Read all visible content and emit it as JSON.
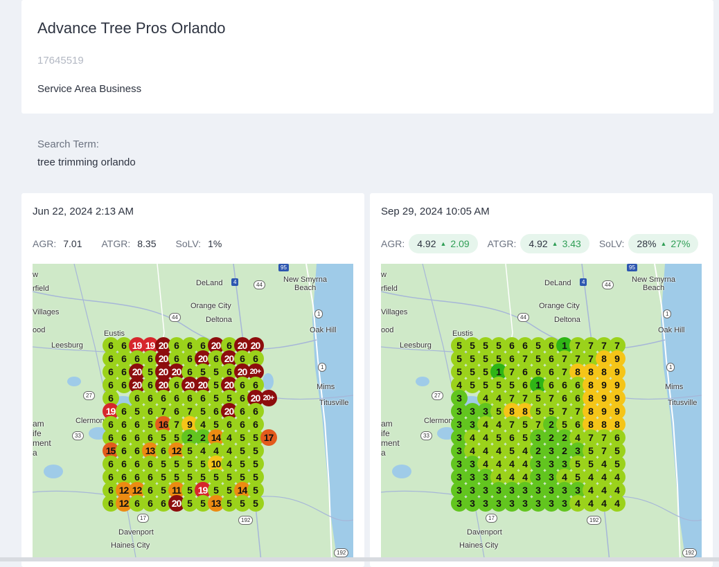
{
  "business": {
    "name": "Advance Tree Pros Orlando",
    "id": "17645519",
    "type": "Service Area Business"
  },
  "search": {
    "label": "Search Term:",
    "term": "tree trimming orlando"
  },
  "colors": {
    "rank_1": "#2fb516",
    "rank_2_3": "#62c51f",
    "rank_4_7": "#9bd21b",
    "rank_8_10": "#f5c518",
    "rank_11_14": "#ec8b12",
    "rank_15_17": "#e35b1c",
    "rank_18_19": "#d6262c",
    "rank_20": "#8d0d0d"
  },
  "scans": [
    {
      "date": "Jun 22, 2024 2:13 AM",
      "metrics": {
        "agr_label": "AGR:",
        "agr": "7.01",
        "atgr_label": "ATGR:",
        "atgr": "8.35",
        "solv_label": "SoLV:",
        "solv": "1%"
      },
      "grid": [
        [
          "6",
          "6",
          "19",
          "19",
          "20",
          "6",
          "6",
          "6",
          "20",
          "6",
          "20",
          "20",
          ""
        ],
        [
          "6",
          "6",
          "6",
          "6",
          "20",
          "6",
          "6",
          "20",
          "6",
          "20",
          "6",
          "6",
          ""
        ],
        [
          "6",
          "6",
          "20",
          "5",
          "20",
          "20",
          "6",
          "5",
          "5",
          "6",
          "20",
          "20+",
          ""
        ],
        [
          "6",
          "6",
          "20",
          "6",
          "20",
          "6",
          "20",
          "20",
          "5",
          "20",
          "6",
          "6",
          ""
        ],
        [
          "6",
          "",
          "6",
          "6",
          "6",
          "6",
          "6",
          "6",
          "5",
          "5",
          "6",
          "20",
          "20+"
        ],
        [
          "19",
          "6",
          "5",
          "6",
          "7",
          "6",
          "7",
          "5",
          "6",
          "20",
          "6",
          "6",
          ""
        ],
        [
          "6",
          "6",
          "6",
          "5",
          "16",
          "7",
          "9",
          "4",
          "5",
          "6",
          "6",
          "6",
          ""
        ],
        [
          "6",
          "6",
          "6",
          "6",
          "5",
          "5",
          "2",
          "2",
          "14",
          "4",
          "5",
          "5",
          "17"
        ],
        [
          "15",
          "6",
          "6",
          "13",
          "6",
          "12",
          "5",
          "4",
          "4",
          "4",
          "5",
          "5",
          ""
        ],
        [
          "6",
          "6",
          "6",
          "6",
          "5",
          "5",
          "5",
          "5",
          "10",
          "4",
          "5",
          "5",
          ""
        ],
        [
          "6",
          "6",
          "6",
          "6",
          "5",
          "5",
          "5",
          "5",
          "5",
          "5",
          "5",
          "5",
          ""
        ],
        [
          "6",
          "12",
          "12",
          "6",
          "5",
          "11",
          "5",
          "19",
          "5",
          "5",
          "14",
          "5",
          ""
        ],
        [
          "6",
          "12",
          "6",
          "6",
          "6",
          "20",
          "5",
          "5",
          "13",
          "5",
          "5",
          "5",
          ""
        ]
      ]
    },
    {
      "date": "Sep 29, 2024 10:05 AM",
      "metrics": {
        "agr_label": "AGR:",
        "agr": "4.92",
        "agr_delta": "2.09",
        "atgr_label": "ATGR:",
        "atgr": "4.92",
        "atgr_delta": "3.43",
        "solv_label": "SoLV:",
        "solv": "28%",
        "solv_delta": "27%"
      },
      "grid": [
        [
          "5",
          "5",
          "5",
          "5",
          "6",
          "6",
          "5",
          "6",
          "1",
          "7",
          "7",
          "7",
          "7"
        ],
        [
          "5",
          "5",
          "5",
          "5",
          "6",
          "7",
          "5",
          "6",
          "7",
          "7",
          "7",
          "8",
          "9"
        ],
        [
          "5",
          "5",
          "5",
          "1",
          "7",
          "6",
          "6",
          "6",
          "7",
          "8",
          "8",
          "8",
          "9"
        ],
        [
          "4",
          "5",
          "5",
          "5",
          "5",
          "6",
          "1",
          "6",
          "6",
          "6",
          "8",
          "9",
          "9"
        ],
        [
          "3",
          "",
          "4",
          "4",
          "7",
          "7",
          "5",
          "7",
          "6",
          "6",
          "8",
          "9",
          "9"
        ],
        [
          "3",
          "3",
          "3",
          "5",
          "8",
          "8",
          "5",
          "5",
          "7",
          "7",
          "8",
          "9",
          "9"
        ],
        [
          "3",
          "3",
          "4",
          "4",
          "7",
          "5",
          "7",
          "2",
          "5",
          "6",
          "8",
          "8",
          "8"
        ],
        [
          "3",
          "4",
          "4",
          "5",
          "6",
          "5",
          "3",
          "2",
          "2",
          "4",
          "7",
          "7",
          "6"
        ],
        [
          "3",
          "4",
          "4",
          "4",
          "5",
          "4",
          "2",
          "3",
          "2",
          "3",
          "5",
          "7",
          "5"
        ],
        [
          "3",
          "3",
          "4",
          "4",
          "4",
          "4",
          "3",
          "3",
          "3",
          "5",
          "5",
          "4",
          "5"
        ],
        [
          "3",
          "3",
          "3",
          "4",
          "4",
          "4",
          "3",
          "3",
          "4",
          "5",
          "4",
          "4",
          "4"
        ],
        [
          "3",
          "3",
          "3",
          "3",
          "3",
          "3",
          "3",
          "3",
          "3",
          "3",
          "4",
          "4",
          "4"
        ],
        [
          "3",
          "3",
          "3",
          "3",
          "3",
          "3",
          "3",
          "3",
          "3",
          "4",
          "4",
          "4",
          "4"
        ]
      ]
    }
  ],
  "map_labels": {
    "deland": "DeLand",
    "new_smyrna": "New Smyrna",
    "beach": "Beach",
    "orange_city": "Orange City",
    "deltona": "Deltona",
    "oak_hill": "Oak Hill",
    "eustis": "Eustis",
    "leesburg": "Leesburg",
    "mims": "Mims",
    "titusville": "Titusville",
    "clermont": "Clermon",
    "davenport": "Davenport",
    "haines_city": "Haines City",
    "fairfield": "rfield",
    "villages": "Villages",
    "ood": "ood",
    "w": "w",
    "am": "am",
    "ife": "ife",
    "ment": "ment",
    "a": "a"
  },
  "shields": [
    "95",
    "4",
    "44",
    "44",
    "1",
    "1",
    "27",
    "33",
    "17",
    "192",
    "192"
  ]
}
